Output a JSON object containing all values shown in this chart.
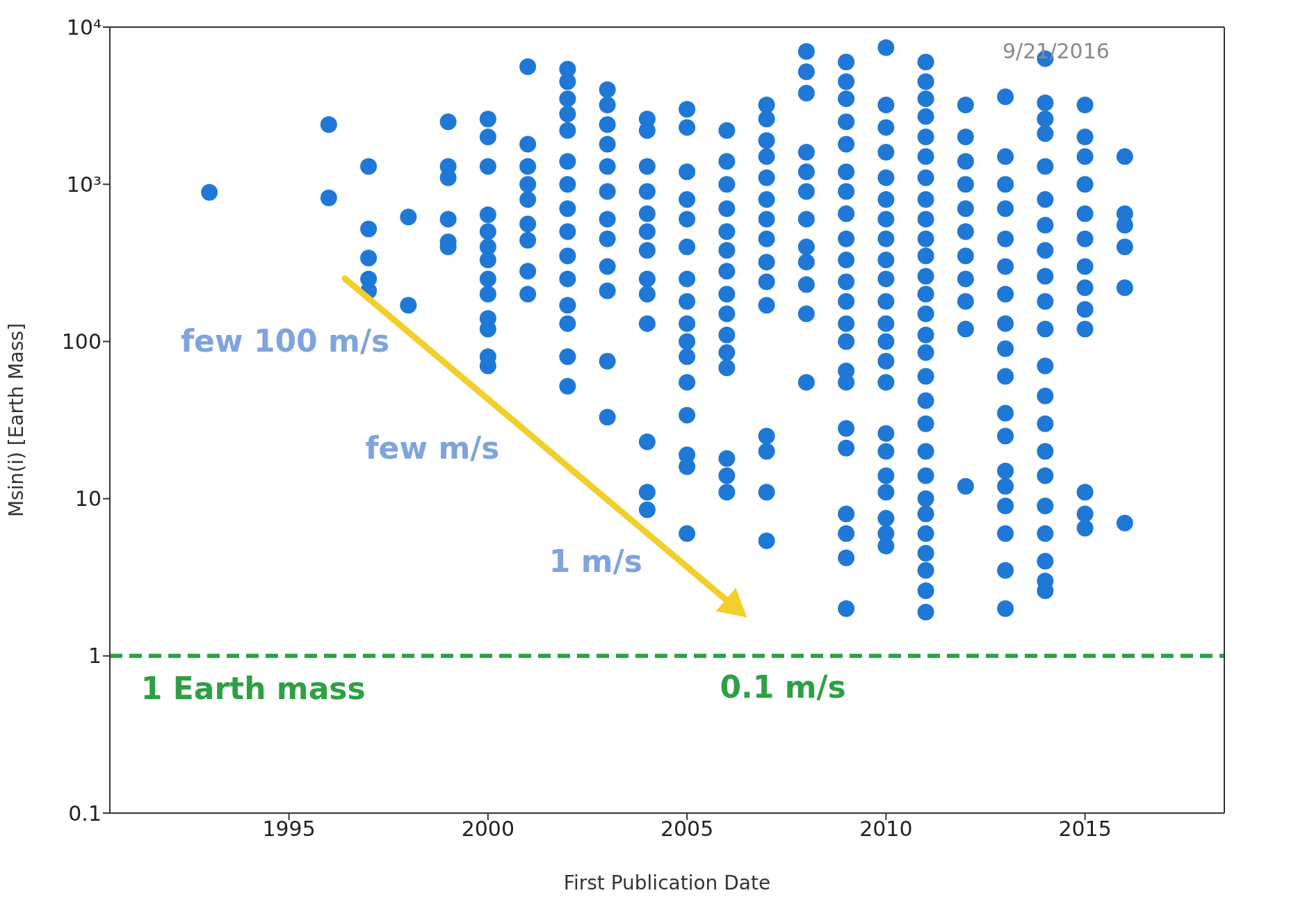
{
  "chart_data": {
    "type": "scatter",
    "xlabel": "First Publication Date",
    "ylabel": "Msin(i) [Earth Mass]",
    "xlim": [
      1990.5,
      2018.5
    ],
    "xticks": [
      1995,
      2000,
      2005,
      2010,
      2015
    ],
    "ylim": [
      0.1,
      10000
    ],
    "yticks": [
      0.1,
      1,
      10,
      100,
      {
        "value": 1000,
        "label": "10³"
      },
      {
        "value": 10000,
        "label": "10⁴"
      }
    ],
    "log": "y",
    "marker": "circle",
    "series": [
      {
        "color": "#1f78d6",
        "x": [
          1993,
          1996,
          1996,
          1997,
          1997,
          1997,
          1997,
          1997,
          1998,
          1998,
          1999,
          1999,
          1999,
          1999,
          1999,
          1999,
          2000,
          2000,
          2000,
          2000,
          2000,
          2000,
          2000,
          2000,
          2000,
          2000,
          2000,
          2000,
          2000,
          2001,
          2001,
          2001,
          2001,
          2001,
          2001,
          2001,
          2001,
          2001,
          2002,
          2002,
          2002,
          2002,
          2002,
          2002,
          2002,
          2002,
          2002,
          2002,
          2002,
          2002,
          2002,
          2002,
          2002,
          2003,
          2003,
          2003,
          2003,
          2003,
          2003,
          2003,
          2003,
          2003,
          2003,
          2003,
          2003,
          2004,
          2004,
          2004,
          2004,
          2004,
          2004,
          2004,
          2004,
          2004,
          2004,
          2004,
          2004,
          2004,
          2005,
          2005,
          2005,
          2005,
          2005,
          2005,
          2005,
          2005,
          2005,
          2005,
          2005,
          2005,
          2005,
          2005,
          2005,
          2005,
          2006,
          2006,
          2006,
          2006,
          2006,
          2006,
          2006,
          2006,
          2006,
          2006,
          2006,
          2006,
          2006,
          2006,
          2006,
          2007,
          2007,
          2007,
          2007,
          2007,
          2007,
          2007,
          2007,
          2007,
          2007,
          2007,
          2007,
          2007,
          2007,
          2007,
          2008,
          2008,
          2008,
          2008,
          2008,
          2008,
          2008,
          2008,
          2008,
          2008,
          2008,
          2008,
          2009,
          2009,
          2009,
          2009,
          2009,
          2009,
          2009,
          2009,
          2009,
          2009,
          2009,
          2009,
          2009,
          2009,
          2009,
          2009,
          2009,
          2009,
          2009,
          2009,
          2009,
          2009,
          2010,
          2010,
          2010,
          2010,
          2010,
          2010,
          2010,
          2010,
          2010,
          2010,
          2010,
          2010,
          2010,
          2010,
          2010,
          2010,
          2010,
          2010,
          2010,
          2010,
          2010,
          2010,
          2011,
          2011,
          2011,
          2011,
          2011,
          2011,
          2011,
          2011,
          2011,
          2011,
          2011,
          2011,
          2011,
          2011,
          2011,
          2011,
          2011,
          2011,
          2011,
          2011,
          2011,
          2011,
          2011,
          2011,
          2011,
          2011,
          2011,
          2011,
          2012,
          2012,
          2012,
          2012,
          2012,
          2012,
          2012,
          2012,
          2012,
          2012,
          2012,
          2013,
          2013,
          2013,
          2013,
          2013,
          2013,
          2013,
          2013,
          2013,
          2013,
          2013,
          2013,
          2013,
          2013,
          2013,
          2013,
          2013,
          2013,
          2014,
          2014,
          2014,
          2014,
          2014,
          2014,
          2014,
          2014,
          2014,
          2014,
          2014,
          2014,
          2014,
          2014,
          2014,
          2014,
          2014,
          2014,
          2014,
          2014,
          2014,
          2015,
          2015,
          2015,
          2015,
          2015,
          2015,
          2015,
          2015,
          2015,
          2015,
          2015,
          2015,
          2015,
          2016,
          2016,
          2016,
          2016,
          2016,
          2016
        ],
        "values": [
          890,
          2400,
          820,
          1300,
          520,
          340,
          250,
          210,
          620,
          170,
          2500,
          1300,
          1100,
          600,
          430,
          400,
          2600,
          2000,
          1300,
          640,
          500,
          400,
          330,
          250,
          200,
          140,
          120,
          80,
          70,
          5600,
          1800,
          1300,
          1000,
          800,
          560,
          440,
          280,
          200,
          5400,
          4500,
          3500,
          2800,
          2200,
          1400,
          1000,
          700,
          500,
          350,
          250,
          170,
          130,
          80,
          52,
          4000,
          3200,
          2400,
          1800,
          1300,
          900,
          600,
          450,
          300,
          210,
          75,
          33,
          2600,
          2200,
          1300,
          900,
          650,
          500,
          380,
          250,
          200,
          130,
          23,
          11,
          8.5,
          3000,
          2300,
          1200,
          800,
          600,
          400,
          250,
          180,
          130,
          100,
          80,
          55,
          34,
          19,
          16,
          6,
          2200,
          1400,
          1000,
          700,
          500,
          380,
          280,
          200,
          150,
          110,
          85,
          68,
          18,
          14,
          11,
          3200,
          2600,
          1900,
          1500,
          1100,
          800,
          600,
          450,
          320,
          240,
          170,
          25,
          20,
          11,
          5.4,
          7000,
          5200,
          3800,
          1600,
          1200,
          900,
          600,
          400,
          320,
          230,
          150,
          55,
          6000,
          4500,
          3500,
          2500,
          1800,
          1200,
          900,
          650,
          450,
          330,
          240,
          180,
          130,
          100,
          65,
          55,
          28,
          21,
          8,
          6,
          4.2,
          2,
          7400,
          3200,
          2300,
          1600,
          1100,
          800,
          600,
          450,
          330,
          250,
          180,
          130,
          100,
          75,
          55,
          26,
          20,
          14,
          11,
          7.5,
          6,
          5,
          6000,
          4500,
          3500,
          2700,
          2000,
          1500,
          1100,
          800,
          600,
          450,
          350,
          260,
          200,
          150,
          110,
          85,
          60,
          42,
          30,
          20,
          14,
          10,
          8,
          6,
          4.5,
          3.5,
          2.6,
          1.9,
          3200,
          2000,
          1400,
          1000,
          700,
          500,
          350,
          250,
          180,
          120,
          12,
          3600,
          1500,
          1000,
          700,
          450,
          300,
          200,
          130,
          90,
          60,
          35,
          25,
          15,
          12,
          9,
          6,
          3.5,
          2,
          6300,
          3300,
          2600,
          2100,
          1300,
          800,
          550,
          380,
          260,
          180,
          120,
          70,
          45,
          30,
          20,
          14,
          9,
          6,
          4,
          3,
          2.6,
          3200,
          2000,
          1500,
          1000,
          650,
          450,
          300,
          220,
          160,
          120,
          11,
          8,
          6.5,
          1500,
          650,
          550,
          400,
          220,
          7
        ]
      }
    ],
    "ref_lines": [
      {
        "axis": "y",
        "value": 1,
        "label": "1 Earth mass",
        "color": "#2ea043",
        "line_style": "dashed"
      }
    ],
    "annotations": [
      "9/21/2016",
      "few 100 m/s",
      "few m/s",
      "1 m/s",
      "0.1 m/s"
    ]
  }
}
